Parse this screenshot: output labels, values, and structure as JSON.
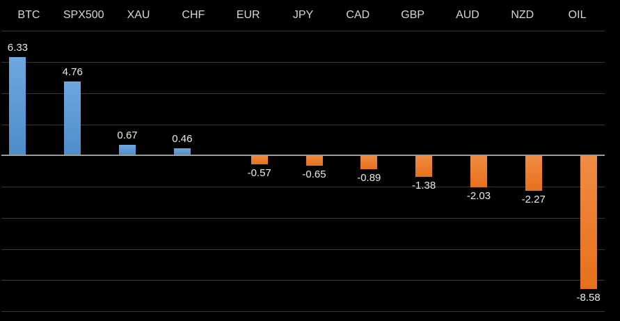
{
  "chart_data": {
    "type": "bar",
    "title": "",
    "xlabel": "",
    "ylabel": "",
    "categories": [
      "BTC",
      "SPX500",
      "XAU",
      "CHF",
      "EUR",
      "JPY",
      "CAD",
      "GBP",
      "AUD",
      "NZD",
      "OIL"
    ],
    "values": [
      6.33,
      4.76,
      0.67,
      0.46,
      -0.57,
      -0.65,
      -0.89,
      -1.38,
      -2.03,
      -2.27,
      -8.58
    ],
    "value_labels": [
      "6.33",
      "4.76",
      "0.67",
      "0.46",
      "-0.57",
      "-0.65",
      "-0.89",
      "-1.38",
      "-2.03",
      "-2.27",
      "-8.58"
    ],
    "ylim": [
      -10,
      8
    ],
    "gridline_step": 2,
    "grid": true,
    "legend": false,
    "axis_tick_labels_shown": false,
    "value_labels_shown": true,
    "colors": {
      "background": "#000000",
      "positive_bar": "#5B9BD5",
      "positive_bar_top": "#6FA7DF",
      "positive_bar_bottom": "#4D8CCA",
      "negative_bar": "#ED7D31",
      "negative_bar_top": "#F08C44",
      "negative_bar_bottom": "#E7701B",
      "gridline": "#383838",
      "zero_line": "#9C9C9C",
      "category_label": "#D6D6D6",
      "value_label": "#EAEAEA"
    }
  }
}
